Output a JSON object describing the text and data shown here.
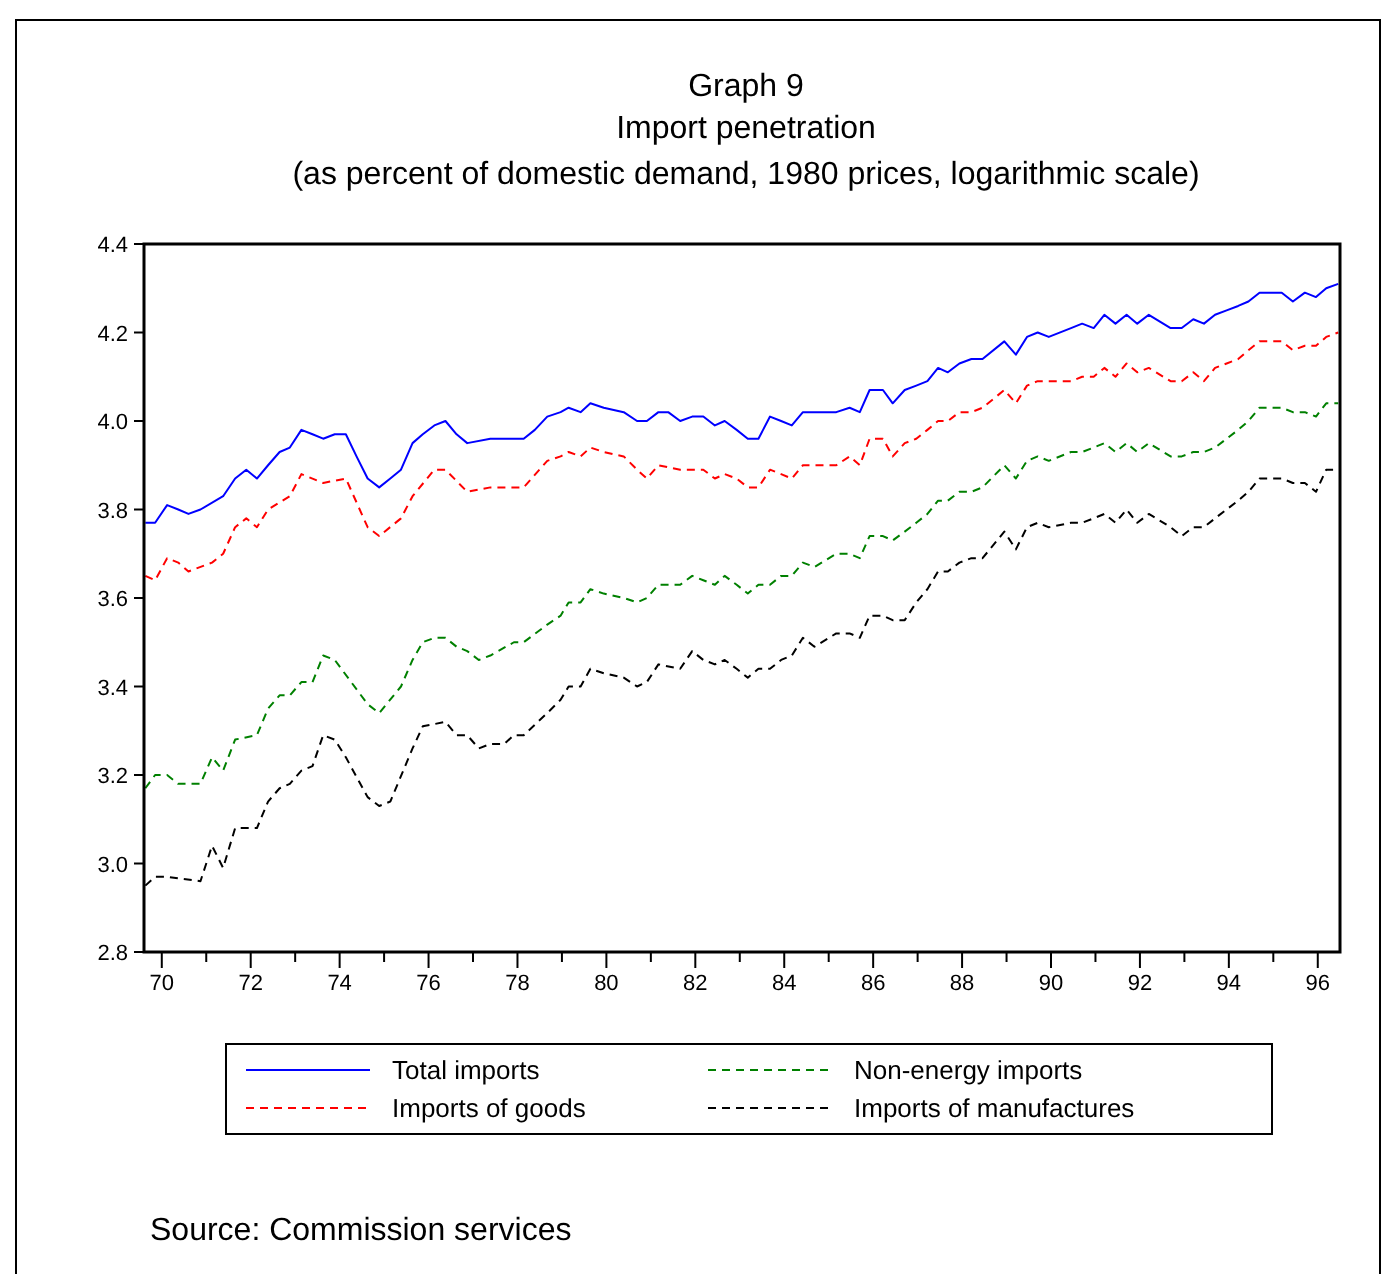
{
  "chart_data": {
    "type": "line",
    "title": "Graph 9\nImport penetration",
    "subtitle": "(as percent of domestic demand, 1980 prices, logarithmic scale)",
    "xlim": [
      1969.6,
      1996.5
    ],
    "xticks": [
      {
        "value": 1970,
        "label": "70"
      },
      {
        "value": 1971,
        "label": null
      },
      {
        "value": 1972,
        "label": "72"
      },
      {
        "value": 1973,
        "label": null
      },
      {
        "value": 1974,
        "label": "74"
      },
      {
        "value": 1975,
        "label": null
      },
      {
        "value": 1976,
        "label": "76"
      },
      {
        "value": 1977,
        "label": null
      },
      {
        "value": 1978,
        "label": "78"
      },
      {
        "value": 1979,
        "label": null
      },
      {
        "value": 1980,
        "label": "80"
      },
      {
        "value": 1981,
        "label": null
      },
      {
        "value": 1982,
        "label": "82"
      },
      {
        "value": 1983,
        "label": null
      },
      {
        "value": 1984,
        "label": "84"
      },
      {
        "value": 1985,
        "label": null
      },
      {
        "value": 1986,
        "label": "86"
      },
      {
        "value": 1987,
        "label": null
      },
      {
        "value": 1988,
        "label": "88"
      },
      {
        "value": 1989,
        "label": null
      },
      {
        "value": 1990,
        "label": "90"
      },
      {
        "value": 1991,
        "label": null
      },
      {
        "value": 1992,
        "label": "92"
      },
      {
        "value": 1993,
        "label": null
      },
      {
        "value": 1994,
        "label": "94"
      },
      {
        "value": 1995,
        "label": null
      },
      {
        "value": 1996,
        "label": "96"
      }
    ],
    "ylim": [
      2.8,
      4.4
    ],
    "yticks": [
      2.8,
      {
        "value": 3,
        "label": "3.0"
      },
      3.2,
      3.4,
      3.6,
      3.8,
      {
        "value": 4,
        "label": "4.0"
      },
      4.2,
      4.4
    ],
    "grid": false,
    "legend": "bottom",
    "marker": "none",
    "annotations": [
      "Source: Commission services"
    ],
    "series": [
      {
        "name": "Total imports",
        "color": "#0000ff",
        "line_style": "solid",
        "x": [
          1969.63,
          1969.85,
          1970.12,
          1970.37,
          1970.6,
          1970.87,
          1971.38,
          1971.65,
          1971.9,
          1972.14,
          1972.39,
          1972.65,
          1972.88,
          1973.14,
          1973.39,
          1973.63,
          1973.89,
          1974.14,
          1974.38,
          1974.63,
          1974.89,
          1975.14,
          1975.38,
          1975.64,
          1975.87,
          1976.13,
          1976.38,
          1976.63,
          1976.87,
          1977.39,
          1977.69,
          1978.14,
          1978.39,
          1978.67,
          1978.97,
          1979.15,
          1979.42,
          1979.64,
          1979.94,
          1980.39,
          1980.69,
          1980.91,
          1981.17,
          1981.39,
          1981.66,
          1981.93,
          1982.18,
          1982.44,
          1982.66,
          1982.93,
          1983.18,
          1983.42,
          1983.68,
          1983.93,
          1984.17,
          1984.42,
          1984.68,
          1985.17,
          1985.47,
          1985.7,
          1985.92,
          1986.22,
          1986.44,
          1986.71,
          1986.97,
          1987.22,
          1987.46,
          1987.68,
          1987.94,
          1988.21,
          1988.46,
          1988.95,
          1989.21,
          1989.46,
          1989.7,
          1989.95,
          1990.45,
          1990.7,
          1990.96,
          1991.2,
          1991.45,
          1991.7,
          1991.94,
          1992.2,
          1992.69,
          1992.94,
          1993.2,
          1993.44,
          1993.69,
          1993.95,
          1994.21,
          1994.44,
          1994.69,
          1995.19,
          1995.44,
          1995.71,
          1995.96,
          1996.19,
          1996.46
        ],
        "values": [
          3.77,
          3.77,
          3.81,
          3.8,
          3.79,
          3.8,
          3.83,
          3.87,
          3.89,
          3.87,
          3.9,
          3.93,
          3.94,
          3.98,
          3.97,
          3.96,
          3.97,
          3.97,
          3.92,
          3.87,
          3.85,
          3.87,
          3.89,
          3.95,
          3.97,
          3.99,
          4.0,
          3.97,
          3.95,
          3.96,
          3.96,
          3.96,
          3.98,
          4.01,
          4.02,
          4.03,
          4.02,
          4.04,
          4.03,
          4.02,
          4.0,
          4.0,
          4.02,
          4.02,
          4.0,
          4.01,
          4.01,
          3.99,
          4.0,
          3.98,
          3.96,
          3.96,
          4.01,
          4.0,
          3.99,
          4.02,
          4.02,
          4.02,
          4.03,
          4.02,
          4.07,
          4.07,
          4.04,
          4.07,
          4.08,
          4.09,
          4.12,
          4.11,
          4.13,
          4.14,
          4.14,
          4.18,
          4.15,
          4.19,
          4.2,
          4.19,
          4.21,
          4.22,
          4.21,
          4.24,
          4.22,
          4.24,
          4.22,
          4.24,
          4.21,
          4.21,
          4.23,
          4.22,
          4.24,
          4.25,
          4.26,
          4.27,
          4.29,
          4.29,
          4.27,
          4.29,
          4.28,
          4.3,
          4.31
        ]
      },
      {
        "name": "Imports of goods",
        "color": "#ff0000",
        "line_style": "dashed",
        "x": [
          1969.63,
          1969.85,
          1970.12,
          1970.37,
          1970.6,
          1971.13,
          1971.38,
          1971.65,
          1971.9,
          1972.14,
          1972.39,
          1972.88,
          1973.14,
          1973.63,
          1974.14,
          1974.63,
          1974.89,
          1975.38,
          1975.64,
          1976.13,
          1976.38,
          1976.87,
          1977.39,
          1978.14,
          1978.67,
          1978.97,
          1979.15,
          1979.42,
          1979.64,
          1979.94,
          1980.39,
          1980.69,
          1980.91,
          1981.17,
          1981.66,
          1981.93,
          1982.18,
          1982.44,
          1982.66,
          1982.93,
          1983.18,
          1983.42,
          1983.68,
          1983.93,
          1984.17,
          1984.42,
          1984.68,
          1985.17,
          1985.47,
          1985.7,
          1985.92,
          1986.22,
          1986.44,
          1986.71,
          1986.97,
          1987.22,
          1987.46,
          1987.68,
          1987.94,
          1988.21,
          1988.46,
          1988.95,
          1989.21,
          1989.46,
          1989.7,
          1989.95,
          1990.45,
          1990.7,
          1990.96,
          1991.2,
          1991.45,
          1991.7,
          1991.94,
          1992.2,
          1992.69,
          1992.94,
          1993.2,
          1993.44,
          1993.69,
          1993.95,
          1994.21,
          1994.44,
          1994.69,
          1995.19,
          1995.44,
          1995.71,
          1995.96,
          1996.19,
          1996.46
        ],
        "values": [
          3.65,
          3.64,
          3.69,
          3.68,
          3.66,
          3.68,
          3.7,
          3.76,
          3.78,
          3.76,
          3.8,
          3.83,
          3.88,
          3.86,
          3.87,
          3.76,
          3.74,
          3.78,
          3.83,
          3.89,
          3.89,
          3.84,
          3.85,
          3.85,
          3.91,
          3.92,
          3.93,
          3.92,
          3.94,
          3.93,
          3.92,
          3.89,
          3.87,
          3.9,
          3.89,
          3.89,
          3.89,
          3.87,
          3.88,
          3.87,
          3.85,
          3.85,
          3.89,
          3.88,
          3.87,
          3.9,
          3.9,
          3.9,
          3.92,
          3.9,
          3.96,
          3.96,
          3.92,
          3.95,
          3.96,
          3.98,
          4.0,
          4.0,
          4.02,
          4.02,
          4.03,
          4.07,
          4.04,
          4.08,
          4.09,
          4.09,
          4.09,
          4.1,
          4.1,
          4.12,
          4.1,
          4.13,
          4.11,
          4.12,
          4.09,
          4.09,
          4.11,
          4.09,
          4.12,
          4.13,
          4.14,
          4.16,
          4.18,
          4.18,
          4.16,
          4.17,
          4.17,
          4.19,
          4.2
        ]
      },
      {
        "name": "Non-energy imports",
        "color": "#008000",
        "line_style": "dashed",
        "x": [
          1969.63,
          1969.85,
          1970.12,
          1970.37,
          1970.6,
          1970.87,
          1971.13,
          1971.38,
          1971.65,
          1972.14,
          1972.39,
          1972.65,
          1972.88,
          1973.14,
          1973.39,
          1973.63,
          1973.89,
          1974.63,
          1974.89,
          1975.38,
          1975.64,
          1975.87,
          1976.13,
          1976.38,
          1976.63,
          1976.87,
          1977.13,
          1977.39,
          1977.92,
          1978.14,
          1978.67,
          1978.97,
          1979.15,
          1979.42,
          1979.64,
          1979.94,
          1980.39,
          1980.69,
          1980.91,
          1981.17,
          1981.66,
          1981.93,
          1982.18,
          1982.44,
          1982.66,
          1982.93,
          1983.18,
          1983.42,
          1983.68,
          1983.93,
          1984.17,
          1984.42,
          1984.68,
          1985.17,
          1985.47,
          1985.7,
          1985.92,
          1986.22,
          1986.44,
          1986.71,
          1986.97,
          1987.22,
          1987.46,
          1987.68,
          1987.94,
          1988.21,
          1988.46,
          1988.95,
          1989.21,
          1989.46,
          1989.7,
          1989.95,
          1990.45,
          1990.7,
          1990.96,
          1991.2,
          1991.45,
          1991.7,
          1991.94,
          1992.2,
          1992.69,
          1992.94,
          1993.2,
          1993.44,
          1993.69,
          1993.95,
          1994.21,
          1994.44,
          1994.69,
          1995.19,
          1995.44,
          1995.71,
          1995.96,
          1996.19,
          1996.46
        ],
        "values": [
          3.17,
          3.2,
          3.2,
          3.18,
          3.18,
          3.18,
          3.24,
          3.21,
          3.28,
          3.29,
          3.35,
          3.38,
          3.38,
          3.41,
          3.41,
          3.47,
          3.46,
          3.36,
          3.34,
          3.4,
          3.46,
          3.5,
          3.51,
          3.51,
          3.49,
          3.48,
          3.46,
          3.47,
          3.5,
          3.5,
          3.54,
          3.56,
          3.59,
          3.59,
          3.62,
          3.61,
          3.6,
          3.59,
          3.6,
          3.63,
          3.63,
          3.65,
          3.64,
          3.63,
          3.65,
          3.63,
          3.61,
          3.63,
          3.63,
          3.65,
          3.65,
          3.68,
          3.67,
          3.7,
          3.7,
          3.69,
          3.74,
          3.74,
          3.73,
          3.75,
          3.77,
          3.79,
          3.82,
          3.82,
          3.84,
          3.84,
          3.85,
          3.9,
          3.87,
          3.91,
          3.92,
          3.91,
          3.93,
          3.93,
          3.94,
          3.95,
          3.93,
          3.95,
          3.93,
          3.95,
          3.92,
          3.92,
          3.93,
          3.93,
          3.94,
          3.96,
          3.98,
          4.0,
          4.03,
          4.03,
          4.02,
          4.02,
          4.01,
          4.04,
          4.04
        ]
      },
      {
        "name": "Imports of manufactures",
        "color": "#000000",
        "line_style": "dashed",
        "x": [
          1969.63,
          1969.85,
          1970.12,
          1970.87,
          1971.13,
          1971.38,
          1971.65,
          1972.14,
          1972.39,
          1972.65,
          1972.88,
          1973.14,
          1973.39,
          1973.63,
          1973.89,
          1974.14,
          1974.63,
          1974.89,
          1975.14,
          1975.64,
          1975.87,
          1976.38,
          1976.63,
          1976.87,
          1977.13,
          1977.39,
          1977.7,
          1977.92,
          1978.14,
          1978.67,
          1978.97,
          1979.15,
          1979.42,
          1979.64,
          1979.94,
          1980.39,
          1980.69,
          1980.91,
          1981.17,
          1981.66,
          1981.93,
          1982.18,
          1982.44,
          1982.66,
          1982.93,
          1983.18,
          1983.42,
          1983.68,
          1983.93,
          1984.17,
          1984.42,
          1984.68,
          1985.17,
          1985.47,
          1985.7,
          1985.92,
          1986.22,
          1986.44,
          1986.71,
          1986.97,
          1987.22,
          1987.46,
          1987.68,
          1987.94,
          1988.21,
          1988.46,
          1988.95,
          1989.21,
          1989.46,
          1989.7,
          1989.95,
          1990.45,
          1990.7,
          1990.96,
          1991.2,
          1991.45,
          1991.7,
          1991.94,
          1992.2,
          1992.69,
          1992.94,
          1993.2,
          1993.44,
          1993.69,
          1993.95,
          1994.21,
          1994.44,
          1994.69,
          1995.19,
          1995.44,
          1995.71,
          1995.96,
          1996.19,
          1996.46
        ],
        "values": [
          2.95,
          2.97,
          2.97,
          2.96,
          3.04,
          2.99,
          3.08,
          3.08,
          3.14,
          3.17,
          3.18,
          3.21,
          3.22,
          3.29,
          3.28,
          3.24,
          3.15,
          3.13,
          3.14,
          3.26,
          3.31,
          3.32,
          3.29,
          3.29,
          3.26,
          3.27,
          3.27,
          3.29,
          3.29,
          3.34,
          3.37,
          3.4,
          3.4,
          3.44,
          3.43,
          3.42,
          3.4,
          3.41,
          3.45,
          3.44,
          3.48,
          3.46,
          3.45,
          3.46,
          3.44,
          3.42,
          3.44,
          3.44,
          3.46,
          3.47,
          3.51,
          3.49,
          3.52,
          3.52,
          3.51,
          3.56,
          3.56,
          3.55,
          3.55,
          3.59,
          3.62,
          3.66,
          3.66,
          3.68,
          3.69,
          3.69,
          3.75,
          3.71,
          3.76,
          3.77,
          3.76,
          3.77,
          3.77,
          3.78,
          3.79,
          3.77,
          3.8,
          3.77,
          3.79,
          3.76,
          3.74,
          3.76,
          3.76,
          3.78,
          3.8,
          3.82,
          3.84,
          3.87,
          3.87,
          3.86,
          3.86,
          3.84,
          3.89,
          3.89
        ]
      }
    ]
  }
}
